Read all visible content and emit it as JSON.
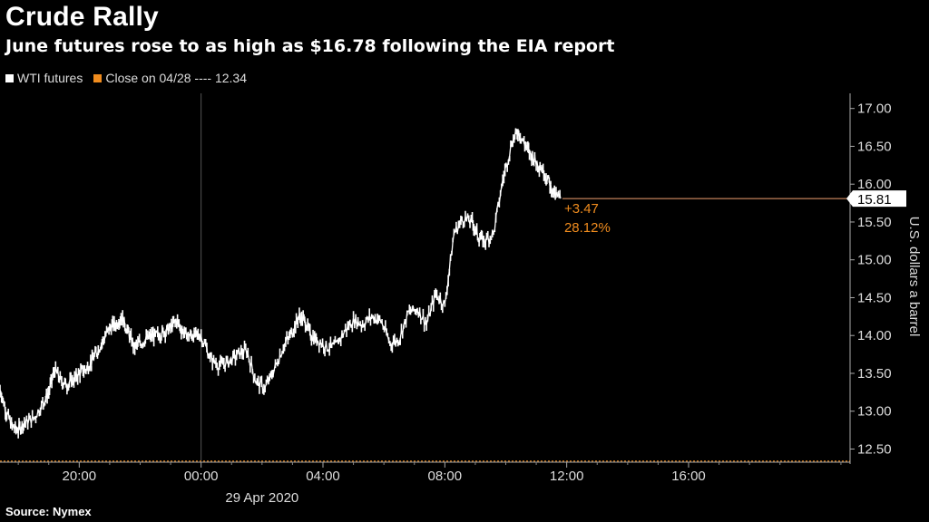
{
  "title": "Crude Rally",
  "subtitle": "June futures rose to as high as $16.78 following the EIA report",
  "legend": [
    {
      "label": "WTI futures",
      "color": "#ffffff"
    },
    {
      "label": "Close on 04/28 ---- 12.34",
      "color": "#f08c1e"
    }
  ],
  "source": "Source: Nymex",
  "chart_data": {
    "type": "line",
    "title": "Crude Rally",
    "subtitle": "June futures rose to as high as $16.78 following the EIA report",
    "ylabel": "U.S. dollars a barrel",
    "xlabel": "",
    "x_date_label": "29 Apr 2020",
    "x_ticks": [
      "20:00",
      "00:00",
      "04:00",
      "08:00",
      "12:00",
      "16:00"
    ],
    "y_ticks": [
      "12.50",
      "13.00",
      "13.50",
      "14.00",
      "14.50",
      "15.00",
      "15.50",
      "16.00",
      "16.50",
      "17.00"
    ],
    "ylim": [
      12.35,
      17.2
    ],
    "xlim_hours": [
      -6.6,
      21.3
    ],
    "reference_line": {
      "label": "Close on 04/28",
      "value": 12.34,
      "color": "#f08c1e"
    },
    "last_value": {
      "value": "15.81",
      "change": "+3.47",
      "change_pct": "28.12%"
    },
    "series": [
      {
        "name": "WTI futures",
        "color": "#ffffff",
        "x_hours": [
          -6.6,
          -6.4,
          -6.2,
          -6.0,
          -5.8,
          -5.5,
          -5.2,
          -5.0,
          -4.8,
          -4.6,
          -4.4,
          -4.2,
          -4.0,
          -3.8,
          -3.6,
          -3.4,
          -3.2,
          -3.0,
          -2.8,
          -2.6,
          -2.4,
          -2.2,
          -2.0,
          -1.8,
          -1.6,
          -1.4,
          -1.2,
          -1.0,
          -0.8,
          -0.6,
          -0.4,
          -0.2,
          0.0,
          0.3,
          0.6,
          0.9,
          1.2,
          1.5,
          1.8,
          2.1,
          2.4,
          2.7,
          3.0,
          3.2,
          3.4,
          3.6,
          3.8,
          4.1,
          4.4,
          4.7,
          5.0,
          5.3,
          5.6,
          5.9,
          6.2,
          6.5,
          6.8,
          7.1,
          7.4,
          7.7,
          8.0,
          8.3,
          8.6,
          8.9,
          9.1,
          9.3,
          9.6,
          9.9,
          10.2,
          10.4,
          10.6,
          10.8,
          11.0,
          11.2,
          11.4,
          11.6,
          11.8
        ],
        "values": [
          13.3,
          13.0,
          12.8,
          12.75,
          12.85,
          12.9,
          13.1,
          13.25,
          13.55,
          13.4,
          13.35,
          13.4,
          13.5,
          13.55,
          13.65,
          13.8,
          13.95,
          14.1,
          14.15,
          14.25,
          14.05,
          13.85,
          13.9,
          13.95,
          14.0,
          14.0,
          14.05,
          14.1,
          14.2,
          14.05,
          14.0,
          14.0,
          14.0,
          13.7,
          13.6,
          13.65,
          13.75,
          13.8,
          13.4,
          13.3,
          13.55,
          13.85,
          14.05,
          14.25,
          14.2,
          14.0,
          13.95,
          13.85,
          13.85,
          14.05,
          14.2,
          14.15,
          14.25,
          14.2,
          13.9,
          13.95,
          14.3,
          14.35,
          14.15,
          14.55,
          14.4,
          15.35,
          15.55,
          15.5,
          15.3,
          15.25,
          15.35,
          16.05,
          16.55,
          16.7,
          16.55,
          16.4,
          16.3,
          16.2,
          16.05,
          15.85,
          15.81
        ]
      }
    ]
  }
}
